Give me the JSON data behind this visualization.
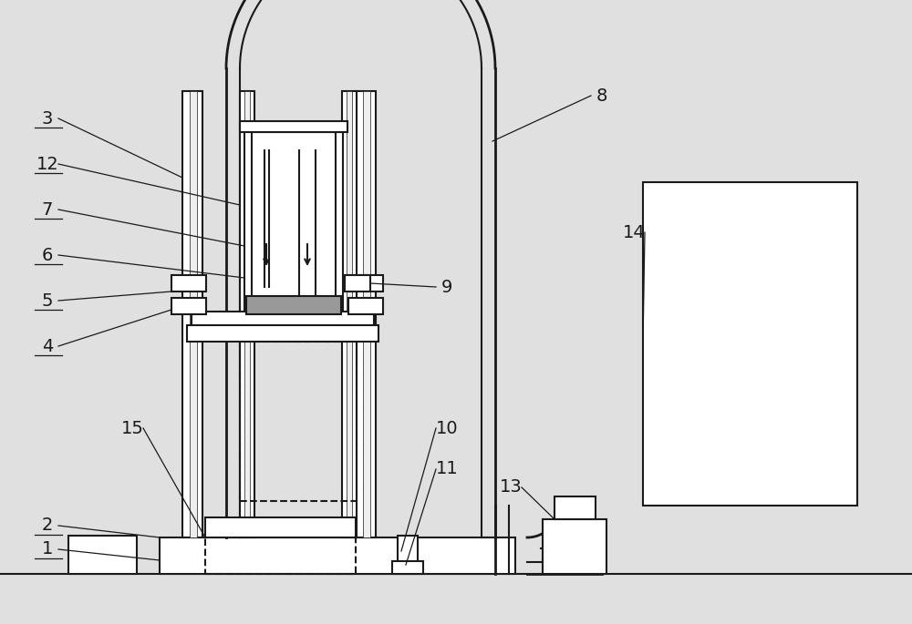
{
  "bg_color": "#e0e0e0",
  "line_color": "#1a1a1a",
  "lw": 1.5,
  "lw2": 2.0,
  "gray": "#999999",
  "white": "#ffffff",
  "light": "#eeeeee"
}
